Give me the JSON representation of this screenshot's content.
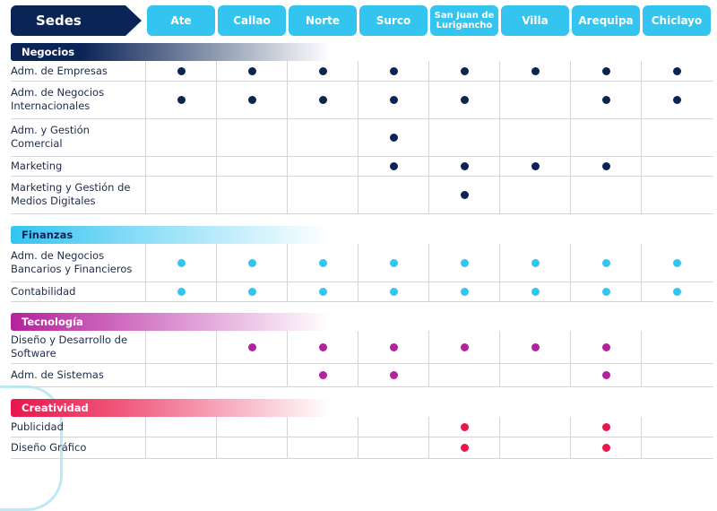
{
  "sedes_label": "Sedes",
  "sedes": [
    "Ate",
    "Callao",
    "Norte",
    "Surco",
    "San Juan de Lurigancho",
    "Villa",
    "Arequipa",
    "Chiclayo"
  ],
  "colors": {
    "Negocios": "#0b2456",
    "Finanzas": "#33c4ef",
    "Tecnología": "#b3229d",
    "Creatividad": "#e8164c",
    "header": "#33c4ef"
  },
  "categories": [
    {
      "name": "Negocios",
      "programs": [
        {
          "name": "Adm. de Empresas",
          "available": [
            1,
            1,
            1,
            1,
            1,
            1,
            1,
            1
          ]
        },
        {
          "name": "Adm. de Negocios Internacionales",
          "available": [
            1,
            1,
            1,
            1,
            1,
            0,
            1,
            1
          ]
        },
        {
          "name": "Adm. y Gestión Comercial",
          "available": [
            0,
            0,
            0,
            1,
            0,
            0,
            0,
            0
          ]
        },
        {
          "name": "Marketing",
          "available": [
            0,
            0,
            0,
            1,
            1,
            1,
            1,
            0
          ]
        },
        {
          "name": "Marketing y Gestión de Medios Digitales",
          "available": [
            0,
            0,
            0,
            0,
            1,
            0,
            0,
            0
          ]
        }
      ]
    },
    {
      "name": "Finanzas",
      "programs": [
        {
          "name": "Adm. de Negocios Bancarios y Financieros",
          "available": [
            1,
            1,
            1,
            1,
            1,
            1,
            1,
            1
          ]
        },
        {
          "name": "Contabilidad",
          "available": [
            1,
            1,
            1,
            1,
            1,
            1,
            1,
            1
          ]
        }
      ]
    },
    {
      "name": "Tecnología",
      "programs": [
        {
          "name": "Diseño y Desarrollo de Software",
          "available": [
            0,
            1,
            1,
            1,
            1,
            1,
            1,
            0
          ]
        },
        {
          "name": "Adm. de Sistemas",
          "available": [
            0,
            0,
            1,
            1,
            0,
            0,
            1,
            0
          ]
        }
      ]
    },
    {
      "name": "Creatividad",
      "programs": [
        {
          "name": "Publicidad",
          "available": [
            0,
            0,
            0,
            0,
            1,
            0,
            1,
            0
          ]
        },
        {
          "name": "Diseño Gráfico",
          "available": [
            0,
            0,
            0,
            0,
            1,
            0,
            1,
            0
          ]
        }
      ]
    }
  ]
}
